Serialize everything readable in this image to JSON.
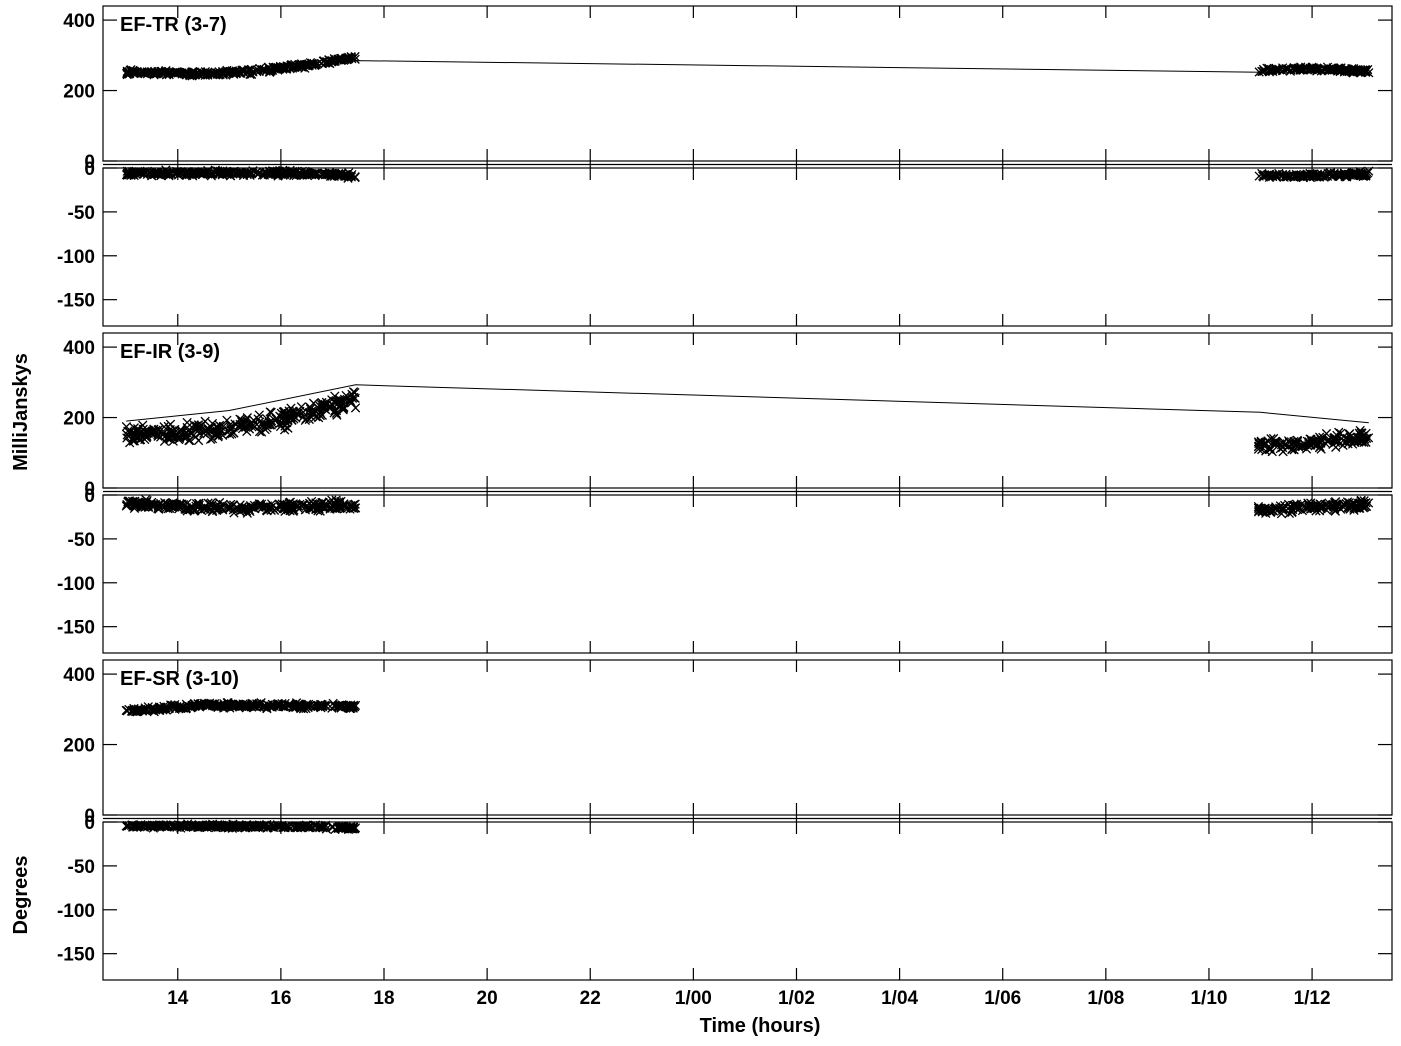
{
  "chart_data": {
    "type": "scatter",
    "xlabel": "Time (hours)",
    "x_ticks": [
      {
        "value": 14,
        "label": "14"
      },
      {
        "value": 16,
        "label": "16"
      },
      {
        "value": 18,
        "label": "18"
      },
      {
        "value": 20,
        "label": "20"
      },
      {
        "value": 22,
        "label": "22"
      },
      {
        "value": 24,
        "label": "1/00"
      },
      {
        "value": 26,
        "label": "1/02"
      },
      {
        "value": 28,
        "label": "1/04"
      },
      {
        "value": 30,
        "label": "1/06"
      },
      {
        "value": 32,
        "label": "1/08"
      },
      {
        "value": 34,
        "label": "1/10"
      },
      {
        "value": 36,
        "label": "1/12"
      }
    ],
    "xlim": [
      12.55,
      37.55
    ],
    "amplitude_ylabel": "MilliJanskys",
    "phase_ylabel": "Degrees",
    "amplitude_ticks": [
      "0",
      "200",
      "400"
    ],
    "phase_ticks": [
      "0",
      "-50",
      "-100",
      "-150"
    ],
    "amplitude_ylim": [
      0,
      440
    ],
    "phase_ylim": [
      -180,
      0
    ],
    "marker": "x",
    "panels": [
      {
        "title": "EF-TR (3-7)",
        "model_line": [
          [
            13.0,
            250
          ],
          [
            14.5,
            247
          ],
          [
            16.0,
            262
          ],
          [
            17.45,
            285
          ],
          [
            35.0,
            252
          ]
        ],
        "segments": [
          {
            "x_range": [
              13.0,
              17.45
            ],
            "amp_trend": [
              [
                13.0,
                252
              ],
              [
                14.5,
                248
              ],
              [
                15.5,
                255
              ],
              [
                16.5,
                272
              ],
              [
                17.45,
                295
              ]
            ],
            "amp_spread": 10,
            "phase_trend": [
              [
                13.0,
                -6
              ],
              [
                15.0,
                -6
              ],
              [
                16.5,
                -6
              ],
              [
                17.45,
                -9
              ]
            ],
            "phase_spread": 4
          },
          {
            "x_range": [
              34.95,
              37.1
            ],
            "amp_trend": [
              [
                34.95,
                255
              ],
              [
                35.8,
                262
              ],
              [
                37.1,
                255
              ]
            ],
            "amp_spread": 9,
            "phase_trend": [
              [
                34.95,
                -8
              ],
              [
                36.0,
                -9
              ],
              [
                37.1,
                -7
              ]
            ],
            "phase_spread": 4
          }
        ]
      },
      {
        "title": "EF-IR (3-9)",
        "model_line": [
          [
            13.0,
            190
          ],
          [
            15.0,
            220
          ],
          [
            17.45,
            293
          ],
          [
            35.0,
            215
          ],
          [
            37.1,
            185
          ]
        ],
        "segments": [
          {
            "x_range": [
              13.0,
              17.45
            ],
            "amp_trend": [
              [
                13.0,
                150
              ],
              [
                14.5,
                160
              ],
              [
                16.0,
                190
              ],
              [
                17.45,
                255
              ]
            ],
            "amp_spread": 38,
            "phase_trend": [
              [
                13.0,
                -10
              ],
              [
                15.0,
                -15
              ],
              [
                16.5,
                -13
              ],
              [
                17.45,
                -12
              ]
            ],
            "phase_spread": 8
          },
          {
            "x_range": [
              34.95,
              37.1
            ],
            "amp_trend": [
              [
                34.95,
                120
              ],
              [
                36.0,
                128
              ],
              [
                37.1,
                145
              ]
            ],
            "amp_spread": 28,
            "phase_trend": [
              [
                34.95,
                -16
              ],
              [
                36.0,
                -14
              ],
              [
                37.1,
                -11
              ]
            ],
            "phase_spread": 8
          }
        ]
      },
      {
        "title": "EF-SR (3-10)",
        "model_line": [],
        "segments": [
          {
            "x_range": [
              13.0,
              17.45
            ],
            "amp_trend": [
              [
                13.0,
                295
              ],
              [
                14.5,
                312
              ],
              [
                16.0,
                310
              ],
              [
                17.45,
                308
              ]
            ],
            "amp_spread": 10,
            "phase_trend": [
              [
                13.0,
                -4
              ],
              [
                15.0,
                -5
              ],
              [
                16.5,
                -5
              ],
              [
                17.45,
                -7
              ]
            ],
            "phase_spread": 3
          }
        ]
      }
    ]
  }
}
